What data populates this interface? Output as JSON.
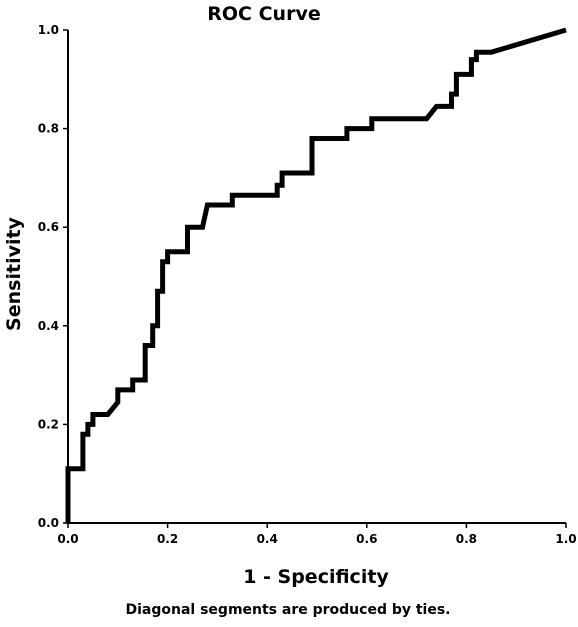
{
  "chart_data": {
    "type": "line",
    "title": "ROC Curve",
    "xlabel": "1 - Specificity",
    "ylabel": "Sensitivity",
    "footnote": "Diagonal segments are produced by ties.",
    "xlim": [
      0,
      1
    ],
    "ylim": [
      0,
      1
    ],
    "x_ticks": [
      "0.0",
      "0.2",
      "0.4",
      "0.6",
      "0.8",
      "1.0"
    ],
    "y_ticks": [
      "0.0",
      "0.2",
      "0.4",
      "0.6",
      "0.8",
      "1.0"
    ],
    "grid": false,
    "line_color": "#000000",
    "series": [
      {
        "x": [
          0.0,
          0.0,
          0.03,
          0.03,
          0.04,
          0.04,
          0.05,
          0.05,
          0.08,
          0.1,
          0.1,
          0.13,
          0.13,
          0.155,
          0.155,
          0.17,
          0.17,
          0.18,
          0.18,
          0.19,
          0.19,
          0.2,
          0.2,
          0.24,
          0.24,
          0.27,
          0.28,
          0.33,
          0.33,
          0.42,
          0.42,
          0.43,
          0.43,
          0.49,
          0.49,
          0.56,
          0.56,
          0.61,
          0.61,
          0.72,
          0.74,
          0.77,
          0.77,
          0.78,
          0.78,
          0.81,
          0.81,
          0.82,
          0.82,
          0.85,
          1.0
        ],
        "y": [
          0.0,
          0.11,
          0.11,
          0.18,
          0.18,
          0.2,
          0.2,
          0.22,
          0.22,
          0.245,
          0.27,
          0.27,
          0.29,
          0.29,
          0.36,
          0.36,
          0.4,
          0.4,
          0.47,
          0.47,
          0.53,
          0.53,
          0.55,
          0.55,
          0.6,
          0.6,
          0.645,
          0.645,
          0.665,
          0.665,
          0.685,
          0.685,
          0.71,
          0.71,
          0.78,
          0.78,
          0.8,
          0.8,
          0.82,
          0.82,
          0.845,
          0.845,
          0.87,
          0.87,
          0.91,
          0.91,
          0.94,
          0.94,
          0.955,
          0.955,
          1.0
        ]
      }
    ]
  }
}
